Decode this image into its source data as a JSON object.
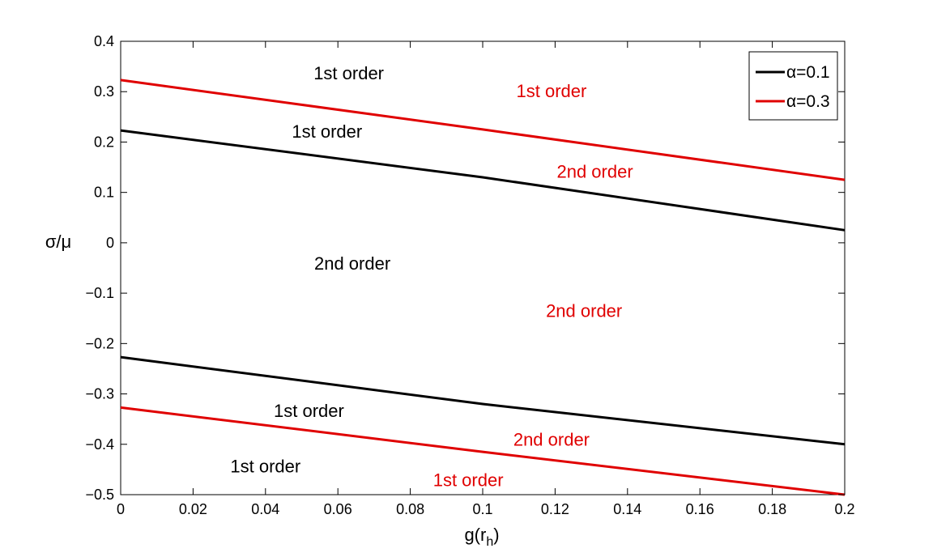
{
  "chart_data": {
    "type": "line",
    "xlabel": "g(r",
    "xlabel_sub": "h",
    "xlabel_close": ")",
    "ylabel": "σ/μ",
    "xlim": [
      0,
      0.2
    ],
    "ylim": [
      -0.5,
      0.4
    ],
    "x_ticks": [
      0,
      0.02,
      0.04,
      0.06,
      0.08,
      0.1,
      0.12,
      0.14,
      0.16,
      0.18,
      0.2
    ],
    "x_tick_labels": [
      "0",
      "0.02",
      "0.04",
      "0.06",
      "0.08",
      "0.1",
      "0.12",
      "0.14",
      "0.16",
      "0.18",
      "0.2"
    ],
    "y_ticks": [
      -0.5,
      -0.4,
      -0.3,
      -0.2,
      -0.1,
      0,
      0.1,
      0.2,
      0.3,
      0.4
    ],
    "y_tick_labels": [
      "−0.5",
      "−0.4",
      "−0.3",
      "−0.2",
      "−0.1",
      "0",
      "0.1",
      "0.2",
      "0.3",
      "0.4"
    ],
    "grid": false,
    "legend_position": "top-right",
    "legend": [
      {
        "label": "α=0.1",
        "color": "#000000"
      },
      {
        "label": "α=0.3",
        "color": "#e00000"
      }
    ],
    "series": [
      {
        "legend_index": 0,
        "color": "#000000",
        "x": [
          0,
          0.1,
          0.2
        ],
        "y": [
          0.223,
          0.13,
          0.025
        ]
      },
      {
        "legend_index": 0,
        "color": "#000000",
        "x": [
          0,
          0.1,
          0.2
        ],
        "y": [
          -0.227,
          -0.32,
          -0.4
        ]
      },
      {
        "legend_index": 1,
        "color": "#e00000",
        "x": [
          0,
          0.1,
          0.2
        ],
        "y": [
          0.323,
          0.225,
          0.125
        ]
      },
      {
        "legend_index": 1,
        "color": "#e00000",
        "x": [
          0,
          0.1,
          0.2
        ],
        "y": [
          -0.327,
          -0.415,
          -0.5
        ]
      }
    ],
    "annotations": [
      {
        "text": "1st order",
        "x": 0.063,
        "y": 0.337,
        "color": "#000000"
      },
      {
        "text": "1st order",
        "x": 0.119,
        "y": 0.302,
        "color": "#e00000"
      },
      {
        "text": "1st order",
        "x": 0.057,
        "y": 0.222,
        "color": "#000000"
      },
      {
        "text": "2nd order",
        "x": 0.131,
        "y": 0.142,
        "color": "#e00000"
      },
      {
        "text": "2nd order",
        "x": 0.064,
        "y": -0.04,
        "color": "#000000"
      },
      {
        "text": "2nd order",
        "x": 0.128,
        "y": -0.134,
        "color": "#e00000"
      },
      {
        "text": "1st order",
        "x": 0.052,
        "y": -0.333,
        "color": "#000000"
      },
      {
        "text": "2nd order",
        "x": 0.119,
        "y": -0.39,
        "color": "#e00000"
      },
      {
        "text": "1st order",
        "x": 0.04,
        "y": -0.443,
        "color": "#000000"
      },
      {
        "text": "1st order",
        "x": 0.096,
        "y": -0.47,
        "color": "#e00000"
      }
    ]
  }
}
